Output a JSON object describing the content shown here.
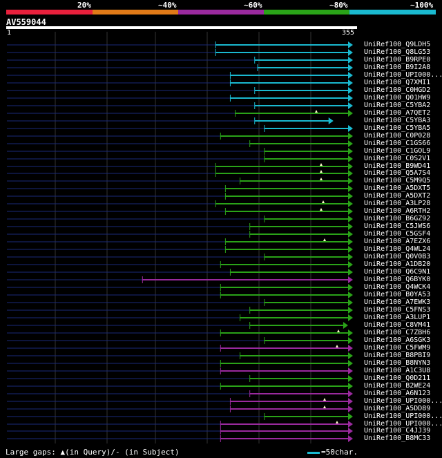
{
  "legend": {
    "segments": [
      {
        "label": "20%",
        "color": "#e8203c"
      },
      {
        "label": "~40%",
        "color": "#e07a18"
      },
      {
        "label": "~60%",
        "color": "#9a2a9e"
      },
      {
        "label": "~80%",
        "color": "#2aa318"
      },
      {
        "label": "~100%",
        "color": "#1ab9d0"
      }
    ]
  },
  "query": {
    "name": "AV559044",
    "start": "1",
    "end": "355",
    "length": 355
  },
  "colors": {
    "cyan": "#1ab9d0",
    "green": "#2aa318",
    "purple": "#9a2a9e",
    "line": "#1a2a7a",
    "grid": "#333333"
  },
  "hits": [
    {
      "name": "UniRef100_Q9LDH5",
      "start": 215,
      "end": 355,
      "color": "cyan",
      "gap": null
    },
    {
      "name": "UniRef100_Q8LG53",
      "start": 215,
      "end": 355,
      "color": "cyan",
      "gap": null
    },
    {
      "name": "UniRef100_B9RPE0",
      "start": 255,
      "end": 355,
      "color": "cyan",
      "gap": null
    },
    {
      "name": "UniRef100_B9I2A8",
      "start": 258,
      "end": 355,
      "color": "cyan",
      "gap": null
    },
    {
      "name": "UniRef100_UPI000...",
      "start": 230,
      "end": 355,
      "color": "cyan",
      "gap": null
    },
    {
      "name": "UniRef100_Q7XMI1",
      "start": 230,
      "end": 355,
      "color": "cyan",
      "gap": null
    },
    {
      "name": "UniRef100_C0HGD2",
      "start": 255,
      "end": 355,
      "color": "cyan",
      "gap": null
    },
    {
      "name": "UniRef100_Q01HW9",
      "start": 230,
      "end": 355,
      "color": "cyan",
      "gap": null
    },
    {
      "name": "UniRef100_C5YBA2",
      "start": 255,
      "end": 355,
      "color": "cyan",
      "gap": null
    },
    {
      "name": "UniRef100_A7QET2",
      "start": 235,
      "end": 355,
      "color": "green",
      "gap": 458
    },
    {
      "name": "UniRef100_C5YBA3",
      "start": 255,
      "end": 335,
      "color": "cyan",
      "gap": null
    },
    {
      "name": "UniRef100_C5YBA5",
      "start": 265,
      "end": 355,
      "color": "cyan",
      "gap": null
    },
    {
      "name": "UniRef100_C0P028",
      "start": 220,
      "end": 355,
      "color": "green",
      "gap": null
    },
    {
      "name": "UniRef100_C1GS66",
      "start": 250,
      "end": 355,
      "color": "green",
      "gap": null
    },
    {
      "name": "UniRef100_C1GOL9",
      "start": 265,
      "end": 355,
      "color": "green",
      "gap": null
    },
    {
      "name": "UniRef100_C0S2V1",
      "start": 265,
      "end": 355,
      "color": "green",
      "gap": null
    },
    {
      "name": "UniRef100_B9WD41",
      "start": 215,
      "end": 355,
      "color": "green",
      "gap": 465
    },
    {
      "name": "UniRef100_Q5A7S4",
      "start": 215,
      "end": 355,
      "color": "green",
      "gap": 465
    },
    {
      "name": "UniRef100_C5M9Q5",
      "start": 240,
      "end": 355,
      "color": "green",
      "gap": 465
    },
    {
      "name": "UniRef100_A5DXT5",
      "start": 225,
      "end": 355,
      "color": "green",
      "gap": null
    },
    {
      "name": "UniRef100_A5DXT2",
      "start": 225,
      "end": 355,
      "color": "green",
      "gap": null
    },
    {
      "name": "UniRef100_A3LP28",
      "start": 215,
      "end": 355,
      "color": "green",
      "gap": 468
    },
    {
      "name": "UniRef100_A6RTH2",
      "start": 225,
      "end": 355,
      "color": "green",
      "gap": 465
    },
    {
      "name": "UniRef100_B6GZ92",
      "start": 265,
      "end": 355,
      "color": "green",
      "gap": null
    },
    {
      "name": "UniRef100_C5JWS6",
      "start": 250,
      "end": 355,
      "color": "green",
      "gap": null
    },
    {
      "name": "UniRef100_C5GSF4",
      "start": 250,
      "end": 355,
      "color": "green",
      "gap": null
    },
    {
      "name": "UniRef100_A7EZX6",
      "start": 225,
      "end": 355,
      "color": "green",
      "gap": 470
    },
    {
      "name": "UniRef100_Q4WL24",
      "start": 225,
      "end": 355,
      "color": "green",
      "gap": null
    },
    {
      "name": "UniRef100_Q0V0B3",
      "start": 265,
      "end": 355,
      "color": "green",
      "gap": null
    },
    {
      "name": "UniRef100_A1DB20",
      "start": 220,
      "end": 355,
      "color": "green",
      "gap": null
    },
    {
      "name": "UniRef100_Q6C9N1",
      "start": 230,
      "end": 355,
      "color": "green",
      "gap": null
    },
    {
      "name": "UniRef100_Q6BYK0",
      "start": 140,
      "end": 355,
      "color": "purple",
      "gap": null
    },
    {
      "name": "UniRef100_Q4WCK4",
      "start": 220,
      "end": 355,
      "color": "green",
      "gap": null
    },
    {
      "name": "UniRef100_B0YA53",
      "start": 220,
      "end": 355,
      "color": "green",
      "gap": null
    },
    {
      "name": "UniRef100_A7EWK3",
      "start": 265,
      "end": 355,
      "color": "green",
      "gap": null
    },
    {
      "name": "UniRef100_C5FNS3",
      "start": 250,
      "end": 355,
      "color": "green",
      "gap": null
    },
    {
      "name": "UniRef100_A3LUP1",
      "start": 240,
      "end": 355,
      "color": "green",
      "gap": null
    },
    {
      "name": "UniRef100_C8VM41",
      "start": 250,
      "end": 350,
      "color": "green",
      "gap": null
    },
    {
      "name": "UniRef100_C7ZBH6",
      "start": 220,
      "end": 355,
      "color": "green",
      "gap": 490
    },
    {
      "name": "UniRef100_A6SGK3",
      "start": 265,
      "end": 355,
      "color": "green",
      "gap": null
    },
    {
      "name": "UniRef100_C5FWM9",
      "start": 220,
      "end": 355,
      "color": "purple",
      "gap": 488
    },
    {
      "name": "UniRef100_B8PBI9",
      "start": 240,
      "end": 355,
      "color": "green",
      "gap": null
    },
    {
      "name": "UniRef100_B8NYN3",
      "start": 220,
      "end": 355,
      "color": "green",
      "gap": null
    },
    {
      "name": "UniRef100_A1C3U8",
      "start": 220,
      "end": 355,
      "color": "purple",
      "gap": null
    },
    {
      "name": "UniRef100_Q0D211",
      "start": 250,
      "end": 355,
      "color": "green",
      "gap": null
    },
    {
      "name": "UniRef100_B2WE24",
      "start": 220,
      "end": 355,
      "color": "green",
      "gap": null
    },
    {
      "name": "UniRef100_A6N123",
      "start": 250,
      "end": 355,
      "color": "purple",
      "gap": null
    },
    {
      "name": "UniRef100_UPI000...",
      "start": 230,
      "end": 355,
      "color": "purple",
      "gap": 470
    },
    {
      "name": "UniRef100_A5DD89",
      "start": 230,
      "end": 355,
      "color": "purple",
      "gap": 470
    },
    {
      "name": "UniRef100_UPI000...",
      "start": 265,
      "end": 355,
      "color": "green",
      "gap": null
    },
    {
      "name": "UniRef100_UPI000...",
      "start": 220,
      "end": 355,
      "color": "purple",
      "gap": 488
    },
    {
      "name": "UniRef100_C4JJ39",
      "start": 220,
      "end": 355,
      "color": "purple",
      "gap": null
    },
    {
      "name": "UniRef100_B8MC33",
      "start": 220,
      "end": 355,
      "color": "purple",
      "gap": null
    }
  ],
  "footer": {
    "text": "Large gaps: ▲(in Query)/- (in Subject)",
    "scale": "=50char."
  }
}
